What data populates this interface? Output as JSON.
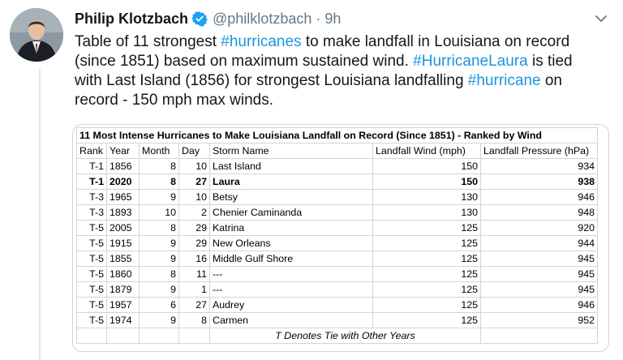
{
  "tweet": {
    "author_name": "Philip Klotzbach",
    "handle": "@philklotzbach",
    "separator": "·",
    "time": "9h",
    "text": [
      {
        "t": "Table of 11 strongest ",
        "tag": false
      },
      {
        "t": "#hurricanes",
        "tag": true
      },
      {
        "t": " to make landfall in Louisiana on record (since 1851) based on maximum sustained wind. ",
        "tag": false
      },
      {
        "t": "#HurricaneLaura",
        "tag": true
      },
      {
        "t": " is tied with Last Island (1856) for strongest Louisiana landfalling ",
        "tag": false
      },
      {
        "t": "#hurricane",
        "tag": true
      },
      {
        "t": " on record - 150 mph max winds.",
        "tag": false
      }
    ]
  },
  "table": {
    "title": "11 Most Intense Hurricanes to Make Louisiana Landfall on Record (Since 1851) - Ranked by Wind",
    "headers": [
      "Rank",
      "Year",
      "Month",
      "Day",
      "Storm Name",
      "Landfall Wind (mph)",
      "Landfall Pressure (hPa)"
    ],
    "rows": [
      {
        "rank": "T-1",
        "year": "1856",
        "month": "8",
        "day": "10",
        "storm": "Last Island",
        "wind": "150",
        "pressure": "934",
        "bold": false
      },
      {
        "rank": "T-1",
        "year": "2020",
        "month": "8",
        "day": "27",
        "storm": "Laura",
        "wind": "150",
        "pressure": "938",
        "bold": true
      },
      {
        "rank": "T-3",
        "year": "1965",
        "month": "9",
        "day": "10",
        "storm": "Betsy",
        "wind": "130",
        "pressure": "946",
        "bold": false
      },
      {
        "rank": "T-3",
        "year": "1893",
        "month": "10",
        "day": "2",
        "storm": "Chenier Caminanda",
        "wind": "130",
        "pressure": "948",
        "bold": false
      },
      {
        "rank": "T-5",
        "year": "2005",
        "month": "8",
        "day": "29",
        "storm": "Katrina",
        "wind": "125",
        "pressure": "920",
        "bold": false
      },
      {
        "rank": "T-5",
        "year": "1915",
        "month": "9",
        "day": "29",
        "storm": "New Orleans",
        "wind": "125",
        "pressure": "944",
        "bold": false
      },
      {
        "rank": "T-5",
        "year": "1855",
        "month": "9",
        "day": "16",
        "storm": "Middle Gulf Shore",
        "wind": "125",
        "pressure": "945",
        "bold": false
      },
      {
        "rank": "T-5",
        "year": "1860",
        "month": "8",
        "day": "11",
        "storm": "---",
        "wind": "125",
        "pressure": "945",
        "bold": false
      },
      {
        "rank": "T-5",
        "year": "1879",
        "month": "9",
        "day": "1",
        "storm": "---",
        "wind": "125",
        "pressure": "945",
        "bold": false
      },
      {
        "rank": "T-5",
        "year": "1957",
        "month": "6",
        "day": "27",
        "storm": "Audrey",
        "wind": "125",
        "pressure": "946",
        "bold": false
      },
      {
        "rank": "T-5",
        "year": "1974",
        "month": "9",
        "day": "8",
        "storm": "Carmen",
        "wind": "125",
        "pressure": "952",
        "bold": false
      }
    ],
    "footnote": "T Denotes Tie with Other Years"
  },
  "icons": {
    "verified": "verified-badge-icon",
    "caret": "chevron-down-icon",
    "avatar": "profile-photo"
  },
  "colors": {
    "link": "#1b95e0",
    "secondary_text": "#657786",
    "verified": "#1da1f2"
  }
}
